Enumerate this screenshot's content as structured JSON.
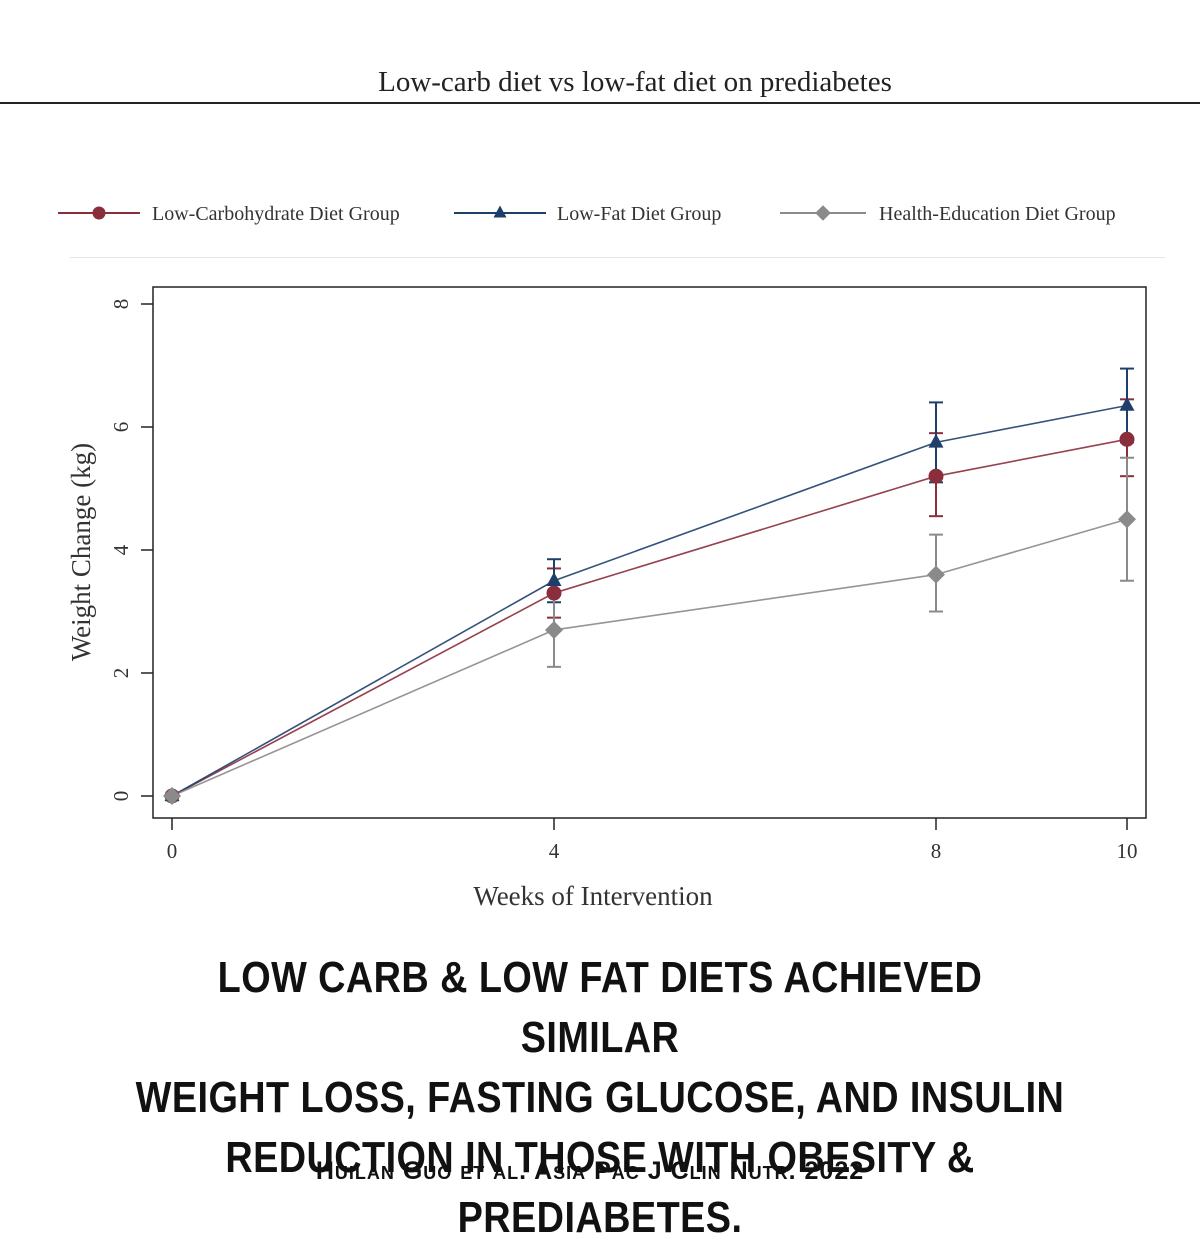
{
  "header": {
    "title": "Low-carb diet vs low-fat diet on prediabetes"
  },
  "chart_data": {
    "type": "line",
    "xlabel": "Weeks of Intervention",
    "ylabel": "Weight Change (kg)",
    "x": [
      0,
      4,
      8,
      10
    ],
    "x_tick_labels": [
      "0",
      "4",
      "8",
      "10"
    ],
    "y_ticks": [
      0,
      2,
      4,
      6,
      8
    ],
    "y_tick_labels": [
      "0",
      "2",
      "4",
      "6",
      "8"
    ],
    "xlim": [
      0,
      10
    ],
    "ylim": [
      0,
      8
    ],
    "grid": false,
    "legend_position": "top",
    "series": [
      {
        "name": "Low-Carbohydrate Diet Group",
        "color": "#8b2e3c",
        "marker": "circle",
        "values": [
          0,
          3.3,
          5.2,
          5.8
        ],
        "error_low": [
          0,
          2.9,
          4.55,
          5.2
        ],
        "error_high": [
          0,
          3.7,
          5.9,
          6.45
        ]
      },
      {
        "name": "Low-Fat Diet Group",
        "color": "#1f3f6b",
        "marker": "triangle",
        "values": [
          0,
          3.5,
          5.75,
          6.35
        ],
        "error_low": [
          0,
          3.15,
          5.1,
          5.75
        ],
        "error_high": [
          0,
          3.85,
          6.4,
          6.95
        ]
      },
      {
        "name": "Health-Education Diet Group",
        "color": "#8a8a8a",
        "marker": "diamond",
        "values": [
          0,
          2.7,
          3.6,
          4.5
        ],
        "error_low": [
          0,
          2.1,
          3.0,
          3.5
        ],
        "error_high": [
          0,
          3.3,
          4.25,
          5.5
        ]
      }
    ]
  },
  "caption": {
    "lines": [
      "Low carb & low fat diets achieved similar",
      "weight loss, fasting glucose, and insulin",
      "reduction in those with obesity & prediabetes."
    ]
  },
  "citation": "Huilan Guo et al. Asia Pac J Clin Nutr. 2022"
}
